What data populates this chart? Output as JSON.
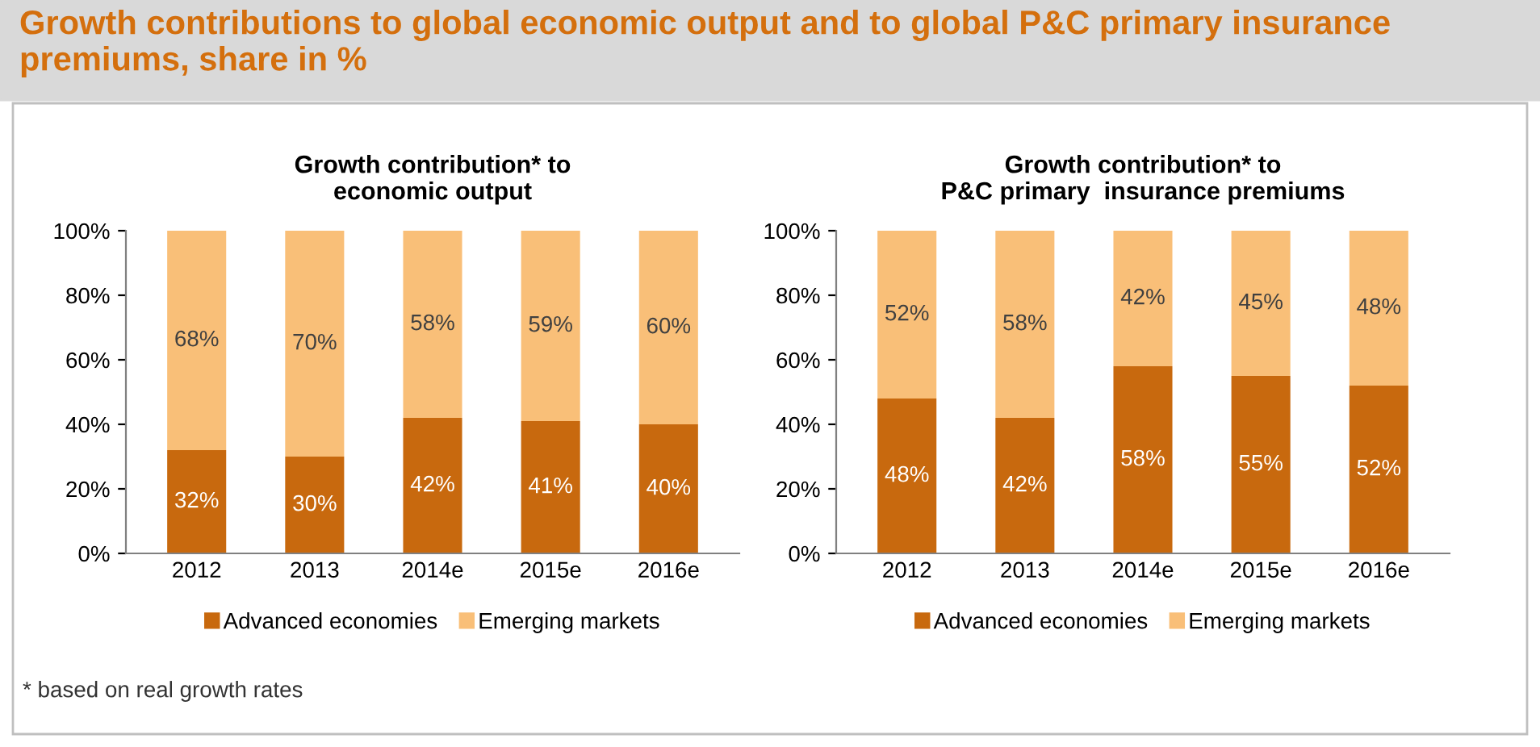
{
  "chart_data": [
    {
      "type": "bar",
      "stacked": true,
      "title": "Growth contribution* to\neconomic output",
      "categories": [
        "2012",
        "2013",
        "2014e",
        "2015e",
        "2016e"
      ],
      "series": [
        {
          "name": "Advanced economies",
          "color": "#c8690e",
          "values": [
            32,
            30,
            42,
            41,
            40
          ]
        },
        {
          "name": "Emerging markets",
          "color": "#f9bf78",
          "values": [
            68,
            70,
            58,
            59,
            60
          ]
        }
      ],
      "ylim": [
        0,
        100
      ],
      "yticks": [
        {
          "value": 0,
          "label": "0%"
        },
        {
          "value": 20,
          "label": "20%"
        },
        {
          "value": 40,
          "label": "40%"
        },
        {
          "value": 60,
          "label": "60%"
        },
        {
          "value": 80,
          "label": "80%"
        },
        {
          "value": 100,
          "label": "100%"
        }
      ],
      "value_labels": [
        [
          "32%",
          "30%",
          "42%",
          "41%",
          "40%"
        ],
        [
          "68%",
          "70%",
          "58%",
          "59%",
          "60%"
        ]
      ],
      "legend": "bottom",
      "grid": false,
      "annotations": [
        "Growth contributions to global economic output and to global P&C primary insurance premiums, share in %",
        "* based on real growth rates"
      ]
    },
    {
      "type": "bar",
      "stacked": true,
      "title": "Growth contribution* to\nP&C primary  insurance premiums",
      "categories": [
        "2012",
        "2013",
        "2014e",
        "2015e",
        "2016e"
      ],
      "series": [
        {
          "name": "Advanced economies",
          "color": "#c8690e",
          "values": [
            48,
            42,
            58,
            55,
            52
          ]
        },
        {
          "name": "Emerging markets",
          "color": "#f9bf78",
          "values": [
            52,
            58,
            42,
            45,
            48
          ]
        }
      ],
      "ylim": [
        0,
        100
      ],
      "yticks": [
        {
          "value": 0,
          "label": "0%"
        },
        {
          "value": 20,
          "label": "20%"
        },
        {
          "value": 40,
          "label": "40%"
        },
        {
          "value": 60,
          "label": "60%"
        },
        {
          "value": 80,
          "label": "80%"
        },
        {
          "value": 100,
          "label": "100%"
        }
      ],
      "value_labels": [
        [
          "48%",
          "42%",
          "58%",
          "55%",
          "52%"
        ],
        [
          "52%",
          "58%",
          "42%",
          "45%",
          "48%"
        ]
      ],
      "legend": "bottom",
      "grid": false
    }
  ]
}
